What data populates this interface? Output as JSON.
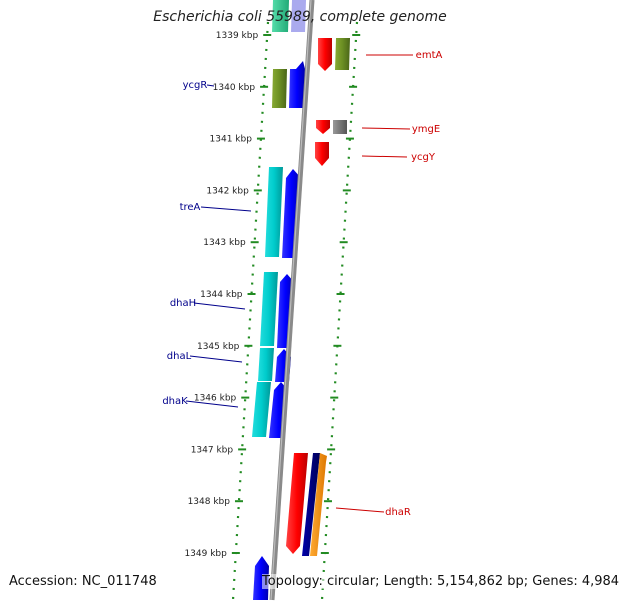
{
  "title": "Escherichia coli 55989, complete genome",
  "accession": "Accession: NC_011748",
  "topology": "Topology: circular; Length: 5,154,862 bp; Genes: 4,984",
  "ticks": [
    {
      "label": "1339 kbp",
      "pos": 0
    },
    {
      "label": "1340 kbp",
      "pos": 1
    },
    {
      "label": "1341 kbp",
      "pos": 2
    },
    {
      "label": "1342 kbp",
      "pos": 3
    },
    {
      "label": "1343 kbp",
      "pos": 4
    },
    {
      "label": "1344 kbp",
      "pos": 5
    },
    {
      "label": "1345 kbp",
      "pos": 6
    },
    {
      "label": "1346 kbp",
      "pos": 7
    },
    {
      "label": "1347 kbp",
      "pos": 8
    },
    {
      "label": "1348 kbp",
      "pos": 9
    },
    {
      "label": "1349 kbp",
      "pos": 10
    }
  ],
  "genes_left": [
    {
      "label": "ycgR",
      "color": "#00008b"
    },
    {
      "label": "treA",
      "color": "#00008b"
    },
    {
      "label": "dhaH",
      "color": "#00008b"
    },
    {
      "label": "dhaL",
      "color": "#00008b"
    },
    {
      "label": "dhaK",
      "color": "#00008b"
    }
  ],
  "genes_right": [
    {
      "label": "emtA",
      "color": "#cc0000"
    },
    {
      "label": "ymgE",
      "color": "#cc0000"
    },
    {
      "label": "ycgY",
      "color": "#cc0000"
    },
    {
      "label": "dhaR",
      "color": "#cc0000"
    }
  ],
  "colors": {
    "backbone": "#888888",
    "dots": "#228b22",
    "forward": "#0000ff",
    "reverse": "#ff0000",
    "cyan": "#00cccc",
    "olive": "#6b8e23",
    "gray": "#777777",
    "navy": "#000080",
    "orange": "#ff8c00"
  }
}
